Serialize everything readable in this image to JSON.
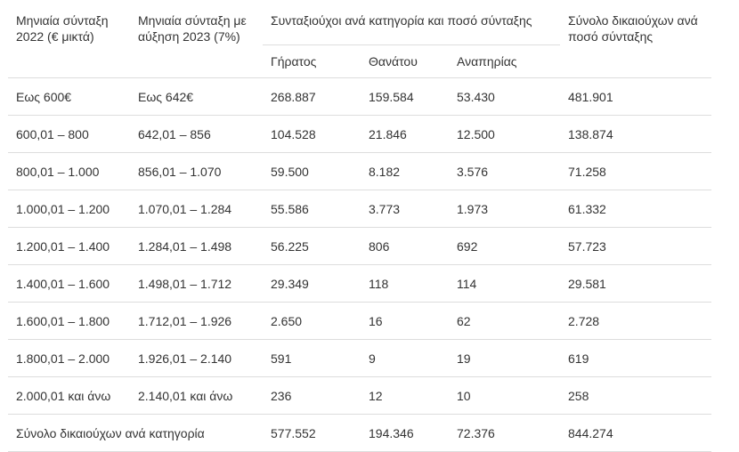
{
  "header": {
    "col1": "Μηνιαία σύνταξη 2022 (€ μικτά)",
    "col2": "Μηνιαία σύνταξη με αύξηση 2023 (7%)",
    "group": "Συνταξιούχοι ανά κατηγορία και ποσό σύνταξης",
    "sub1": "Γήρατος",
    "sub2": "Θανάτου",
    "sub3": "Αναπηρίας",
    "col6": "Σύνολο δικαιούχων ανά ποσό σύνταξης"
  },
  "rows": [
    {
      "r2022": "Εως 600€",
      "r2023": "Εως 642€",
      "old_age": "268.887",
      "death": "159.584",
      "disability": "53.430",
      "total": "481.901"
    },
    {
      "r2022": "600,01 – 800",
      "r2023": "642,01 – 856",
      "old_age": "104.528",
      "death": "21.846",
      "disability": "12.500",
      "total": "138.874"
    },
    {
      "r2022": "800,01 – 1.000",
      "r2023": "856,01 – 1.070",
      "old_age": "59.500",
      "death": "8.182",
      "disability": "3.576",
      "total": "71.258"
    },
    {
      "r2022": "1.000,01 – 1.200",
      "r2023": "1.070,01 – 1.284",
      "old_age": "55.586",
      "death": "3.773",
      "disability": "1.973",
      "total": "61.332"
    },
    {
      "r2022": "1.200,01 – 1.400",
      "r2023": "1.284,01 – 1.498",
      "old_age": "56.225",
      "death": "806",
      "disability": "692",
      "total": "57.723"
    },
    {
      "r2022": "1.400,01 – 1.600",
      "r2023": "1.498,01 – 1.712",
      "old_age": "29.349",
      "death": "118",
      "disability": "114",
      "total": "29.581"
    },
    {
      "r2022": "1.600,01 – 1.800",
      "r2023": "1.712,01 – 1.926",
      "old_age": "2.650",
      "death": "16",
      "disability": "62",
      "total": "2.728"
    },
    {
      "r2022": "1.800,01 – 2.000",
      "r2023": "1.926,01 – 2.140",
      "old_age": "591",
      "death": "9",
      "disability": "19",
      "total": "619"
    },
    {
      "r2022": "2.000,01 και άνω",
      "r2023": "2.140,01 και άνω",
      "old_age": "236",
      "death": "12",
      "disability": "10",
      "total": "258"
    }
  ],
  "totals": {
    "label": "Σύνολο δικαιούχων ανά κατηγορία",
    "old_age": "577.552",
    "death": "194.346",
    "disability": "72.376",
    "total": "844.274"
  }
}
